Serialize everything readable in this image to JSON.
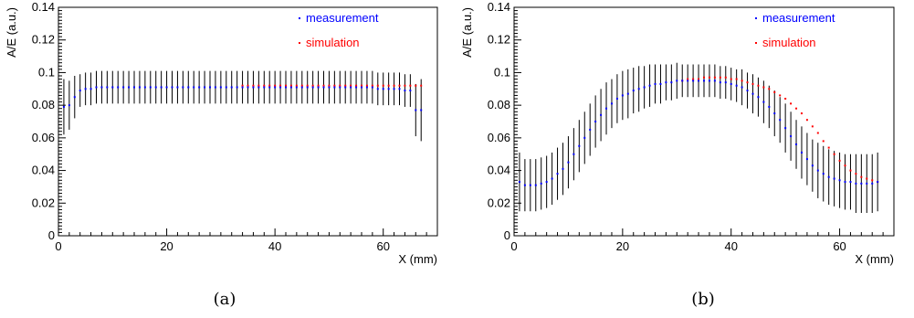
{
  "chart_data": [
    {
      "id": "a",
      "type": "scatter",
      "caption": "(a)",
      "xlabel": "X (mm)",
      "ylabel": "A/E (a.u.)",
      "xlim": [
        0,
        70
      ],
      "ylim": [
        0,
        0.14
      ],
      "x_ticks": [
        "0",
        "20",
        "40",
        "60"
      ],
      "y_ticks": [
        "0",
        "0.02",
        "0.04",
        "0.06",
        "0.08",
        "0.1",
        "0.12",
        "0.14"
      ],
      "grid": false,
      "legend_position": "top-right",
      "colors": {
        "measurement": "#0000ff",
        "simulation": "#ff0000",
        "error_bar": "#000000"
      },
      "series": [
        {
          "name": "measurement",
          "x": [
            1,
            2,
            3,
            4,
            5,
            6,
            7,
            8,
            9,
            10,
            11,
            12,
            13,
            14,
            15,
            16,
            17,
            18,
            19,
            20,
            21,
            22,
            23,
            24,
            25,
            26,
            27,
            28,
            29,
            30,
            31,
            32,
            33,
            34,
            35,
            36,
            37,
            38,
            39,
            40,
            41,
            42,
            43,
            44,
            45,
            46,
            47,
            48,
            49,
            50,
            51,
            52,
            53,
            54,
            55,
            56,
            57,
            58,
            59,
            60,
            61,
            62,
            63,
            64,
            65,
            66,
            67
          ],
          "values": [
            0.079,
            0.08,
            0.085,
            0.089,
            0.09,
            0.09,
            0.091,
            0.091,
            0.091,
            0.091,
            0.091,
            0.091,
            0.091,
            0.091,
            0.091,
            0.091,
            0.091,
            0.091,
            0.091,
            0.091,
            0.091,
            0.091,
            0.091,
            0.091,
            0.091,
            0.091,
            0.091,
            0.091,
            0.091,
            0.091,
            0.091,
            0.091,
            0.091,
            0.091,
            0.091,
            0.091,
            0.091,
            0.091,
            0.091,
            0.091,
            0.091,
            0.091,
            0.091,
            0.091,
            0.091,
            0.091,
            0.091,
            0.091,
            0.091,
            0.091,
            0.091,
            0.091,
            0.091,
            0.091,
            0.091,
            0.091,
            0.091,
            0.091,
            0.09,
            0.09,
            0.09,
            0.09,
            0.09,
            0.089,
            0.089,
            0.077,
            0.077
          ],
          "errors": [
            0.017,
            0.015,
            0.013,
            0.01,
            0.01,
            0.01,
            0.01,
            0.01,
            0.01,
            0.01,
            0.01,
            0.01,
            0.01,
            0.01,
            0.01,
            0.01,
            0.01,
            0.01,
            0.01,
            0.01,
            0.01,
            0.01,
            0.01,
            0.01,
            0.01,
            0.01,
            0.01,
            0.01,
            0.01,
            0.01,
            0.01,
            0.01,
            0.01,
            0.01,
            0.01,
            0.01,
            0.01,
            0.01,
            0.01,
            0.01,
            0.01,
            0.01,
            0.01,
            0.01,
            0.01,
            0.01,
            0.01,
            0.01,
            0.01,
            0.01,
            0.01,
            0.01,
            0.01,
            0.01,
            0.01,
            0.01,
            0.01,
            0.01,
            0.01,
            0.01,
            0.01,
            0.01,
            0.01,
            0.01,
            0.01,
            0.016,
            0.019
          ]
        },
        {
          "name": "simulation",
          "x": [
            34,
            35,
            36,
            37,
            38,
            39,
            40,
            41,
            42,
            43,
            44,
            45,
            46,
            47,
            48,
            49,
            50,
            51,
            52,
            53,
            54,
            55,
            56,
            57,
            58,
            59,
            60,
            61,
            62,
            63,
            64,
            65,
            66,
            67
          ],
          "values": [
            0.092,
            0.092,
            0.092,
            0.092,
            0.092,
            0.092,
            0.092,
            0.092,
            0.092,
            0.092,
            0.092,
            0.092,
            0.092,
            0.092,
            0.092,
            0.092,
            0.092,
            0.092,
            0.092,
            0.092,
            0.092,
            0.092,
            0.092,
            0.092,
            0.092,
            0.092,
            0.092,
            0.092,
            0.092,
            0.092,
            0.092,
            0.092,
            0.092,
            0.092
          ]
        }
      ]
    },
    {
      "id": "b",
      "type": "scatter",
      "caption": "(b)",
      "xlabel": "X (mm)",
      "ylabel": "A/E (a.u.)",
      "xlim": [
        0,
        70
      ],
      "ylim": [
        0,
        0.14
      ],
      "x_ticks": [
        "0",
        "20",
        "40",
        "60"
      ],
      "y_ticks": [
        "0",
        "0.02",
        "0.04",
        "0.06",
        "0.08",
        "0.1",
        "0.12",
        "0.14"
      ],
      "grid": false,
      "legend_position": "top-right",
      "colors": {
        "measurement": "#0000ff",
        "simulation": "#ff0000",
        "error_bar": "#000000"
      },
      "series": [
        {
          "name": "measurement",
          "x": [
            1,
            2,
            3,
            4,
            5,
            6,
            7,
            8,
            9,
            10,
            11,
            12,
            13,
            14,
            15,
            16,
            17,
            18,
            19,
            20,
            21,
            22,
            23,
            24,
            25,
            26,
            27,
            28,
            29,
            30,
            31,
            32,
            33,
            34,
            35,
            36,
            37,
            38,
            39,
            40,
            41,
            42,
            43,
            44,
            45,
            46,
            47,
            48,
            49,
            50,
            51,
            52,
            53,
            54,
            55,
            56,
            57,
            58,
            59,
            60,
            61,
            62,
            63,
            64,
            65,
            66,
            67
          ],
          "values": [
            0.033,
            0.031,
            0.031,
            0.031,
            0.032,
            0.033,
            0.035,
            0.038,
            0.041,
            0.045,
            0.05,
            0.055,
            0.06,
            0.065,
            0.07,
            0.074,
            0.078,
            0.081,
            0.084,
            0.086,
            0.087,
            0.089,
            0.09,
            0.091,
            0.092,
            0.093,
            0.093,
            0.094,
            0.094,
            0.095,
            0.095,
            0.095,
            0.095,
            0.095,
            0.095,
            0.095,
            0.095,
            0.094,
            0.094,
            0.093,
            0.092,
            0.091,
            0.089,
            0.087,
            0.085,
            0.082,
            0.079,
            0.075,
            0.071,
            0.066,
            0.061,
            0.056,
            0.051,
            0.047,
            0.043,
            0.04,
            0.038,
            0.036,
            0.035,
            0.034,
            0.033,
            0.033,
            0.032,
            0.032,
            0.032,
            0.032,
            0.033
          ],
          "errors": [
            0.018,
            0.016,
            0.016,
            0.016,
            0.016,
            0.016,
            0.016,
            0.016,
            0.016,
            0.016,
            0.016,
            0.016,
            0.016,
            0.016,
            0.016,
            0.016,
            0.016,
            0.015,
            0.015,
            0.015,
            0.015,
            0.014,
            0.014,
            0.013,
            0.013,
            0.012,
            0.012,
            0.011,
            0.011,
            0.011,
            0.01,
            0.01,
            0.01,
            0.01,
            0.01,
            0.01,
            0.01,
            0.01,
            0.01,
            0.01,
            0.01,
            0.011,
            0.011,
            0.012,
            0.012,
            0.013,
            0.013,
            0.014,
            0.014,
            0.015,
            0.015,
            0.015,
            0.016,
            0.016,
            0.016,
            0.017,
            0.017,
            0.017,
            0.017,
            0.017,
            0.017,
            0.017,
            0.018,
            0.018,
            0.018,
            0.018,
            0.018
          ]
        },
        {
          "name": "simulation",
          "x": [
            31,
            32,
            33,
            34,
            35,
            36,
            37,
            38,
            39,
            40,
            41,
            42,
            43,
            44,
            45,
            46,
            47,
            48,
            49,
            50,
            51,
            52,
            53,
            54,
            55,
            56,
            57,
            58,
            59,
            60,
            61,
            62,
            63,
            64,
            65,
            66,
            67
          ],
          "values": [
            0.095,
            0.096,
            0.096,
            0.096,
            0.097,
            0.097,
            0.097,
            0.097,
            0.097,
            0.096,
            0.096,
            0.095,
            0.094,
            0.093,
            0.092,
            0.091,
            0.09,
            0.088,
            0.086,
            0.084,
            0.081,
            0.078,
            0.075,
            0.071,
            0.067,
            0.063,
            0.058,
            0.054,
            0.05,
            0.046,
            0.043,
            0.04,
            0.038,
            0.036,
            0.035,
            0.034,
            0.033
          ]
        }
      ]
    }
  ]
}
